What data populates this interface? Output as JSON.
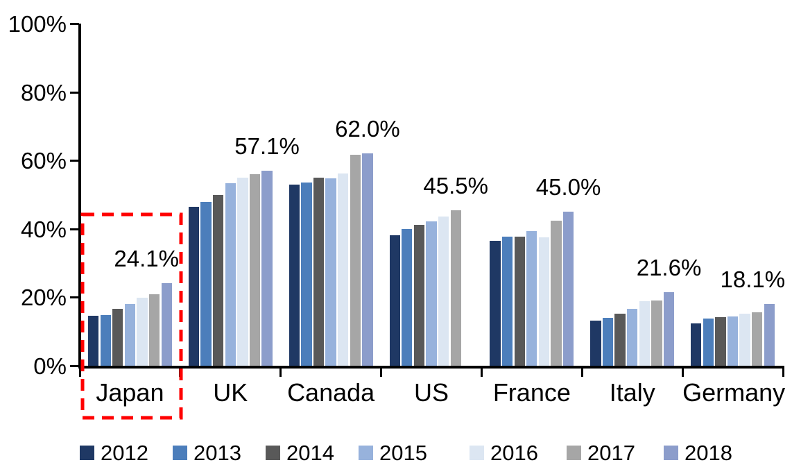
{
  "chart_data": {
    "type": "bar",
    "title": "",
    "xlabel": "",
    "ylabel": "",
    "ylim": [
      0,
      100
    ],
    "grid": false,
    "legend_position": "bottom",
    "y_tick_labels": [
      "0%",
      "20%",
      "40%",
      "60%",
      "80%",
      "100%"
    ],
    "y_tick_values": [
      0,
      20,
      40,
      60,
      80,
      100
    ],
    "categories": [
      "Japan",
      "UK",
      "Canada",
      "US",
      "France",
      "Italy",
      "Germany"
    ],
    "series": [
      {
        "name": "2012",
        "color": "#1F3864",
        "values": [
          14.7,
          46.4,
          53.0,
          38.2,
          36.5,
          13.2,
          12.4
        ]
      },
      {
        "name": "2013",
        "color": "#4C7EBB",
        "values": [
          14.9,
          47.8,
          53.5,
          40.0,
          37.8,
          14.0,
          13.9
        ]
      },
      {
        "name": "2014",
        "color": "#595959",
        "values": [
          16.6,
          50.0,
          55.0,
          41.1,
          37.7,
          15.2,
          14.2
        ]
      },
      {
        "name": "2015",
        "color": "#97B2DC",
        "values": [
          18.0,
          53.3,
          54.7,
          42.1,
          39.4,
          16.7,
          14.5
        ]
      },
      {
        "name": "2016",
        "color": "#DCE6F2",
        "values": [
          19.8,
          54.9,
          56.2,
          43.6,
          37.5,
          18.9,
          15.2
        ]
      },
      {
        "name": "2017",
        "color": "#A6A6A6",
        "values": [
          21.0,
          55.9,
          61.7,
          45.5,
          42.4,
          19.0,
          15.7
        ]
      },
      {
        "name": "2018",
        "color": "#8C9DCB",
        "values": [
          24.1,
          57.1,
          62.0,
          null,
          45.0,
          21.6,
          18.1
        ]
      }
    ],
    "data_labels": [
      "24.1%",
      "57.1%",
      "62.0%",
      "45.5%",
      "45.0%",
      "21.6%",
      "18.1%"
    ],
    "legend": [
      "2012",
      "2013",
      "2014",
      "2015",
      "2016",
      "2017",
      "2018"
    ],
    "annotation": {
      "highlight_box_category": "Japan",
      "highlight_box_color": "#FF0000",
      "highlight_box_style": "dashed"
    }
  }
}
